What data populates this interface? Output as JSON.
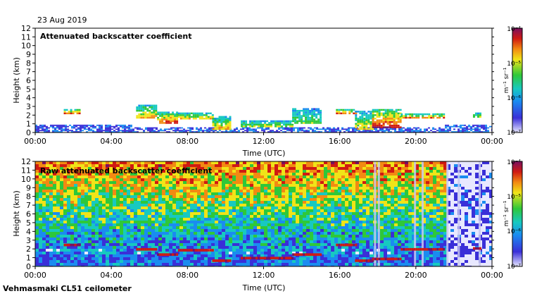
{
  "header": {
    "date": "23 Aug 2019"
  },
  "footer": {
    "instrument": "Vehmasmaki CL51 ceilometer"
  },
  "colorbar": {
    "ticks": [
      "10⁻⁴",
      "10⁻⁵",
      "10⁻⁶",
      "10⁻⁷"
    ],
    "unit_label": "m⁻¹ sr⁻¹"
  },
  "colors": {
    "scale": [
      "#e8e8ff",
      "#3a2fd8",
      "#1a8cf0",
      "#17c9c0",
      "#2ec83a",
      "#f0e418",
      "#f28a12",
      "#d01a12",
      "#7a1060"
    ]
  },
  "chart_data": [
    {
      "type": "heatmap",
      "title": "Attenuated backscatter coefficient",
      "xlabel": "Time (UTC)",
      "ylabel": "Height (km)",
      "xticks": [
        "00:00",
        "04:00",
        "08:00",
        "12:00",
        "16:00",
        "20:00",
        "00:00"
      ],
      "yticks": [
        "0",
        "1",
        "2",
        "3",
        "4",
        "5",
        "6",
        "7",
        "8",
        "9",
        "10",
        "11",
        "12"
      ],
      "xlim_hours": [
        0,
        24
      ],
      "ylim_km": [
        0,
        12
      ],
      "cloud_layers": [
        {
          "start_h": 1.5,
          "end_h": 2.3,
          "base_km": 2.1,
          "top_km": 2.6,
          "level": 0.7
        },
        {
          "start_h": 5.3,
          "end_h": 6.4,
          "base_km": 1.6,
          "top_km": 3.2,
          "level": 0.6
        },
        {
          "start_h": 6.4,
          "end_h": 7.5,
          "base_km": 1.0,
          "top_km": 2.2,
          "level": 0.75
        },
        {
          "start_h": 7.5,
          "end_h": 9.3,
          "base_km": 1.5,
          "top_km": 2.3,
          "level": 0.55
        },
        {
          "start_h": 9.3,
          "end_h": 10.2,
          "base_km": 0.3,
          "top_km": 1.8,
          "level": 0.6
        },
        {
          "start_h": 10.8,
          "end_h": 13.5,
          "base_km": 0.6,
          "top_km": 1.4,
          "level": 0.5
        },
        {
          "start_h": 13.5,
          "end_h": 15.0,
          "base_km": 1.0,
          "top_km": 2.8,
          "level": 0.45
        },
        {
          "start_h": 15.8,
          "end_h": 16.8,
          "base_km": 2.1,
          "top_km": 2.6,
          "level": 0.7
        },
        {
          "start_h": 16.8,
          "end_h": 17.7,
          "base_km": 0.3,
          "top_km": 2.4,
          "level": 0.55
        },
        {
          "start_h": 17.7,
          "end_h": 19.2,
          "base_km": 0.5,
          "top_km": 2.6,
          "level": 0.8
        },
        {
          "start_h": 19.2,
          "end_h": 21.5,
          "base_km": 1.6,
          "top_km": 2.1,
          "level": 0.65
        },
        {
          "start_h": 23.0,
          "end_h": 23.4,
          "base_km": 1.7,
          "top_km": 2.2,
          "level": 0.5
        }
      ]
    },
    {
      "type": "heatmap",
      "title": "Raw attenuated backscatter coefficient",
      "xlabel": "Time (UTC)",
      "ylabel": "Height (km)",
      "xticks": [
        "00:00",
        "04:00",
        "08:00",
        "12:00",
        "16:00",
        "20:00",
        "00:00"
      ],
      "yticks": [
        "0",
        "1",
        "2",
        "3",
        "4",
        "5",
        "6",
        "7",
        "8",
        "9",
        "10",
        "11",
        "12"
      ],
      "xlim_hours": [
        0,
        24
      ],
      "ylim_km": [
        0,
        12
      ],
      "noisy_columns_hours": [
        17.8,
        18.0,
        19.9,
        20.3,
        21.6,
        22.2,
        23.3
      ]
    }
  ]
}
